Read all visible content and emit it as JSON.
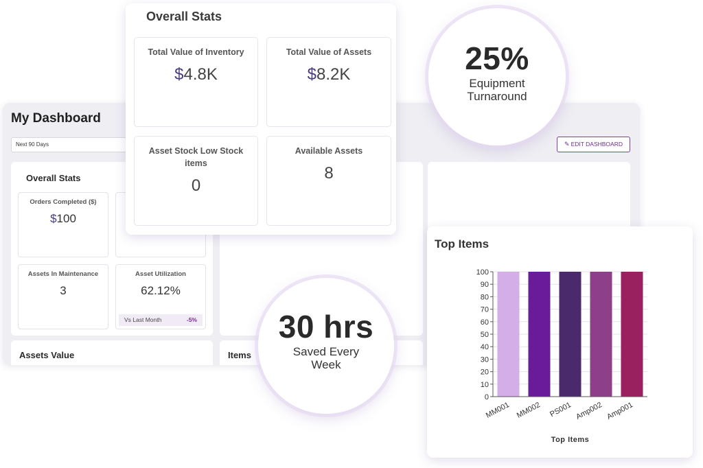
{
  "dashboard": {
    "title": "My Dashboard",
    "date_range": "Next 90 Days",
    "edit_label": "EDIT DASHBOARD",
    "overall_title": "Overall Stats",
    "stats": {
      "orders_completed": {
        "label": "Orders Completed ($)",
        "currency": "$",
        "value": "100"
      },
      "assets_in_maintenance": {
        "label": "Assets In Maintenance",
        "value": "3"
      },
      "asset_utilization": {
        "label": "Asset Utilization",
        "value": "62.12%",
        "compare_label": "Vs Last Month",
        "compare_value": "-5%"
      }
    },
    "bottom_titles": {
      "assets_value": "Assets Value",
      "items": "Items"
    }
  },
  "overall_stats": {
    "title": "Overall Stats",
    "cards": [
      {
        "label": "Total Value of Inventory",
        "currency": "$",
        "value": "4.8K"
      },
      {
        "label": "Total Value of Assets",
        "currency": "$",
        "value": "8.2K"
      },
      {
        "label": "Asset Stock Low Stock items",
        "value": "0"
      },
      {
        "label": "Available Assets",
        "value": "8"
      }
    ]
  },
  "callouts": {
    "turnaround": {
      "value": "25%",
      "label_line1": "Equipment",
      "label_line2": "Turnaround"
    },
    "saved": {
      "value": "30 hrs",
      "label_line1": "Saved Every",
      "label_line2": "Week"
    }
  },
  "top_items": {
    "title": "Top Items"
  },
  "chart_data": {
    "type": "bar",
    "title": "Top Items",
    "xlabel": "Top Items",
    "ylabel": "",
    "categories": [
      "MM001",
      "MM002",
      "PS001",
      "Amp002",
      "Amp001"
    ],
    "values": [
      100,
      100,
      100,
      100,
      100
    ],
    "colors": [
      "#d4aee6",
      "#6a1b9a",
      "#4a2a6b",
      "#8e3f8a",
      "#9a2160"
    ],
    "ylim": [
      0,
      100
    ],
    "yticks": [
      0,
      10,
      20,
      30,
      40,
      50,
      60,
      70,
      80,
      90,
      100
    ],
    "grid": true,
    "legend": false
  },
  "icons": {
    "edit": "pencil-icon"
  }
}
